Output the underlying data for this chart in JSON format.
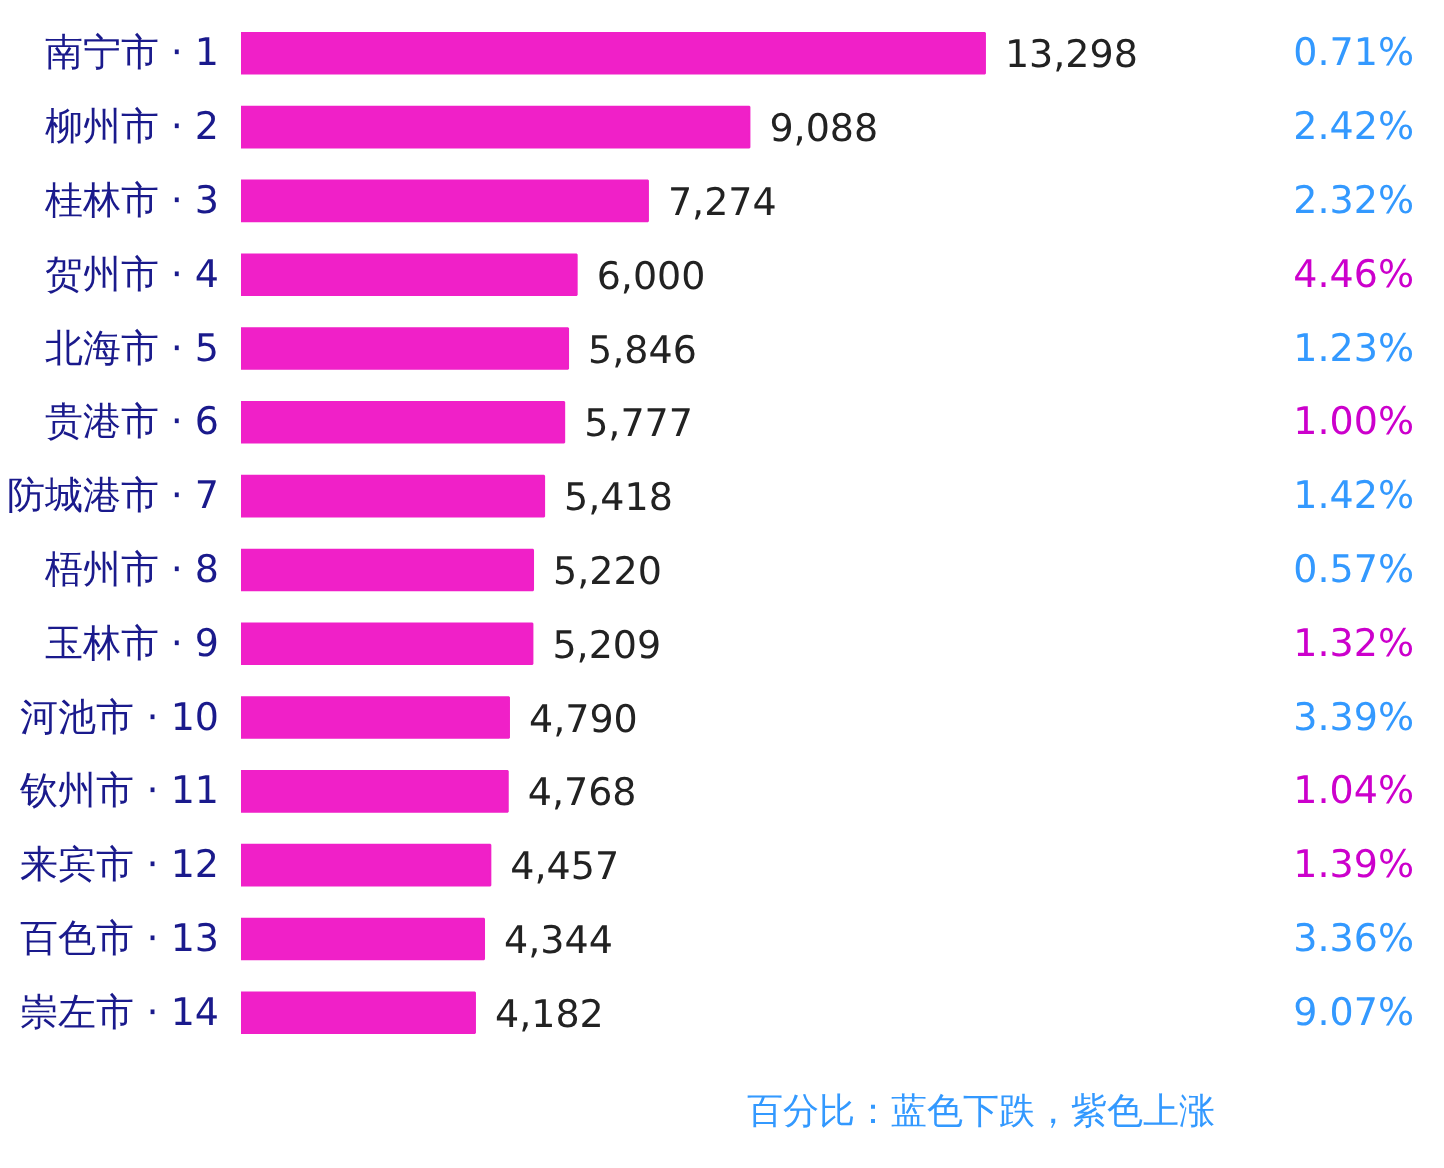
{
  "chart_data": [
    {
      "type": "bar",
      "orientation": "horizontal",
      "categories": [
        "南宁市 · 1",
        "柳州市 · 2",
        "桂林市 · 3",
        "贺州市 · 4",
        "北海市 · 5",
        "贵港市 · 6",
        "防城港市 · 7",
        "梧州市 · 8",
        "玉林市 · 9",
        "河池市 · 10",
        "钦州市 · 11",
        "来宾市 · 12",
        "百色市 · 13",
        "崇左市 · 14"
      ],
      "values": [
        13298,
        9088,
        7274,
        6000,
        5846,
        5777,
        5418,
        5220,
        5209,
        4790,
        4768,
        4457,
        4344,
        4182
      ],
      "value_labels": [
        "13,298",
        "9,088",
        "7,274",
        "6,000",
        "5,846",
        "5,777",
        "5,418",
        "5,220",
        "5,209",
        "4,790",
        "4,768",
        "4,457",
        "4,344",
        "4,182"
      ],
      "color": "#f020c8",
      "annotations": [
        "百分比：蓝色下跌，紫色上涨"
      ]
    },
    {
      "type": "other",
      "values": [
        0.71,
        2.42,
        2.32,
        4.46,
        1.23,
        1.0,
        1.42,
        0.57,
        1.32,
        3.39,
        1.04,
        1.39,
        3.36,
        9.07
      ],
      "value_labels": [
        "0.71%",
        "2.42%",
        "2.32%",
        "4.46%",
        "1.23%",
        "1.00%",
        "1.42%",
        "0.57%",
        "1.32%",
        "3.39%",
        "1.04%",
        "1.39%",
        "3.36%",
        "9.07%"
      ],
      "colors": [
        "#3399ff",
        "#3399ff",
        "#3399ff",
        "#cc00cc",
        "#3399ff",
        "#cc00cc",
        "#3399ff",
        "#3399ff",
        "#cc00cc",
        "#3399ff",
        "#cc00cc",
        "#cc00cc",
        "#3399ff",
        "#3399ff"
      ]
    }
  ]
}
